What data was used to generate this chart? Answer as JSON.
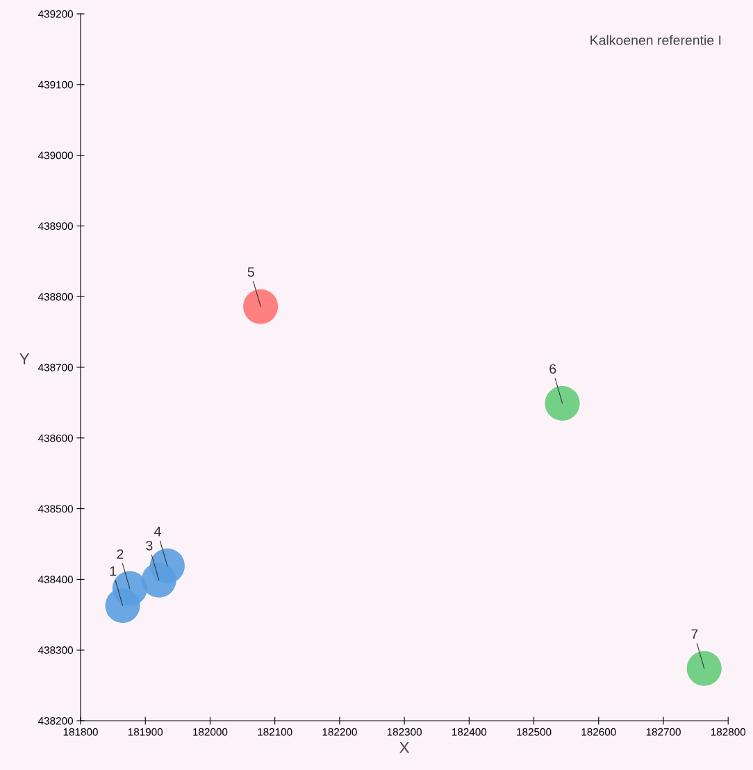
{
  "chart_data": {
    "type": "scatter",
    "title": "Kalkoenen referentie I",
    "xlabel": "X",
    "ylabel": "Y",
    "series": [
      {
        "color": "#5a9fe0",
        "x": [
          181865,
          181876,
          181921,
          181934
        ],
        "values": [
          438363,
          438387,
          438399,
          438419
        ]
      },
      {
        "color": "#ff7373",
        "x": [
          182078
        ],
        "values": [
          438786
        ]
      },
      {
        "color": "#66cc7a",
        "x": [
          182544,
          182763
        ],
        "values": [
          438649,
          438274
        ]
      }
    ],
    "annotations": [
      {
        "text": "1",
        "x": 181865,
        "y": 438363
      },
      {
        "text": "2",
        "x": 181876,
        "y": 438387
      },
      {
        "text": "3",
        "x": 181921,
        "y": 438399
      },
      {
        "text": "4",
        "x": 181934,
        "y": 438419
      },
      {
        "text": "5",
        "x": 182078,
        "y": 438786
      },
      {
        "text": "6",
        "x": 182544,
        "y": 438649
      },
      {
        "text": "7",
        "x": 182763,
        "y": 438274
      }
    ],
    "xlim": [
      181800,
      182800
    ],
    "xticks": [
      181800,
      181900,
      182000,
      182100,
      182200,
      182300,
      182400,
      182500,
      182600,
      182700,
      182800
    ],
    "ylim": [
      438200,
      439200
    ],
    "yticks": [
      438200,
      438300,
      438400,
      438500,
      438600,
      438700,
      438800,
      438900,
      439000,
      439100,
      439200
    ],
    "marker": "circle",
    "grid": false,
    "legend": false
  }
}
